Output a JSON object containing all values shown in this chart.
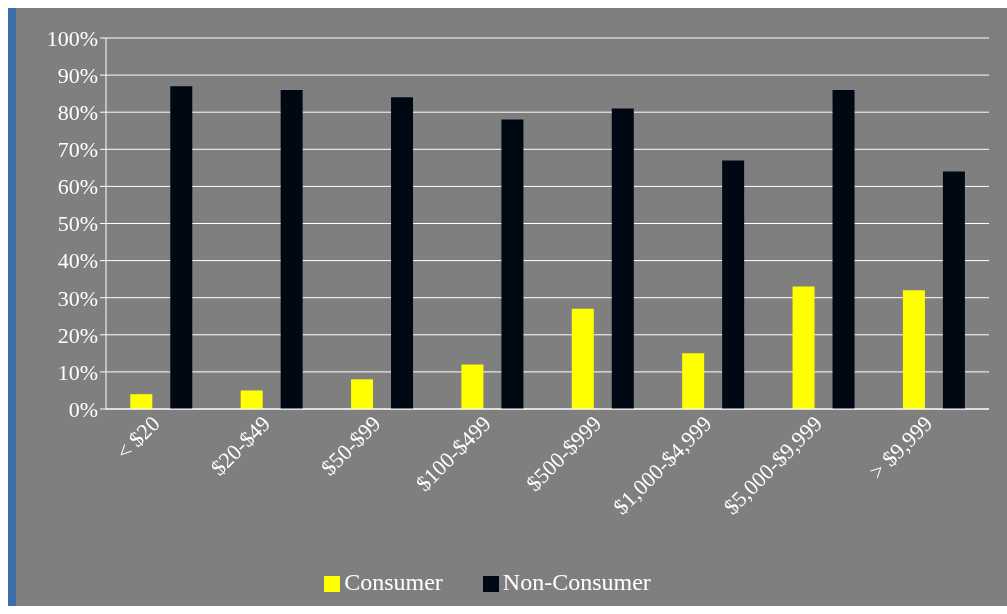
{
  "chart_data": {
    "type": "bar",
    "categories": [
      "< $20",
      "$20-$49",
      "$50-$99",
      "$100-$499",
      "$500-$999",
      "$1,000-$4,999",
      "$5,000-$9,999",
      "> $9,999"
    ],
    "series": [
      {
        "name": "Consumer",
        "color": "#ffff00",
        "values": [
          4,
          5,
          8,
          12,
          27,
          15,
          33,
          32
        ]
      },
      {
        "name": "Non-Consumer",
        "color": "#000814",
        "values": [
          87,
          86,
          84,
          78,
          81,
          67,
          86,
          64
        ]
      }
    ],
    "ylim": [
      0,
      100
    ],
    "yticks": [
      {
        "value": 0,
        "label": "0%"
      },
      {
        "value": 10,
        "label": "10%"
      },
      {
        "value": 20,
        "label": "20%"
      },
      {
        "value": 30,
        "label": "30%"
      },
      {
        "value": 40,
        "label": "40%"
      },
      {
        "value": 50,
        "label": "50%"
      },
      {
        "value": 60,
        "label": "60%"
      },
      {
        "value": 70,
        "label": "70%"
      },
      {
        "value": 80,
        "label": "80%"
      },
      {
        "value": 90,
        "label": "90%"
      },
      {
        "value": 100,
        "label": "100%"
      }
    ],
    "grid": "y",
    "legend": "bottom"
  }
}
